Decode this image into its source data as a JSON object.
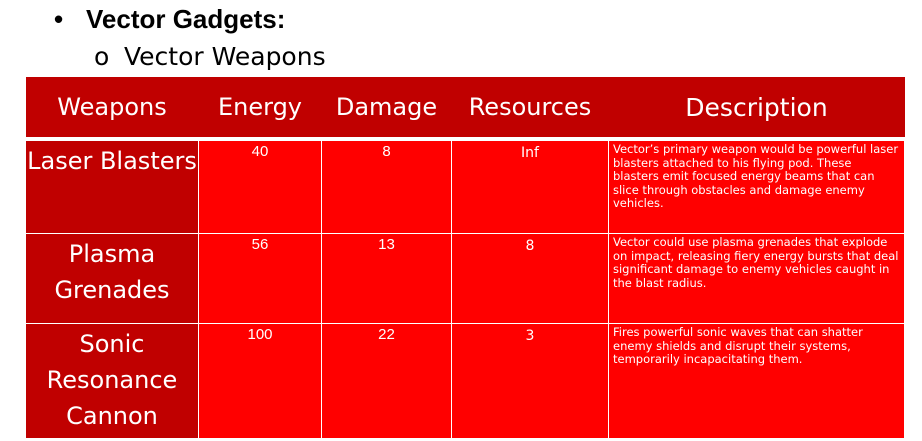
{
  "heading": {
    "bullet": "•",
    "text": "Vector Gadgets:"
  },
  "subheading": {
    "bullet": "o",
    "text": "Vector Weapons"
  },
  "table": {
    "headers": [
      "Weapons",
      "Energy",
      "Damage",
      "Resources",
      "Description"
    ],
    "rows": [
      {
        "name": "Laser Blasters",
        "energy": "40",
        "damage": "8",
        "resources": "Inf",
        "description": "Vector’s primary weapon would be powerful laser blasters attached to his flying pod. These blasters emit focused energy beams that can slice through obstacles and damage enemy vehicles."
      },
      {
        "name": "Plasma Grenades",
        "energy": "56",
        "damage": "13",
        "resources": "8",
        "description": "Vector could use plasma grenades that explode on impact, releasing fiery energy bursts that deal significant damage to enemy vehicles caught in the blast radius."
      },
      {
        "name": "Sonic Resonance Cannon",
        "energy": "100",
        "damage": "22",
        "resources": "3",
        "description": "Fires powerful sonic waves that can shatter enemy shields and disrupt their systems, temporarily incapacitating them."
      }
    ]
  },
  "colors": {
    "header_bg": "#c00000",
    "name_bg": "#c00000",
    "cell_bg": "#ff0000",
    "text": "#ffffff"
  }
}
